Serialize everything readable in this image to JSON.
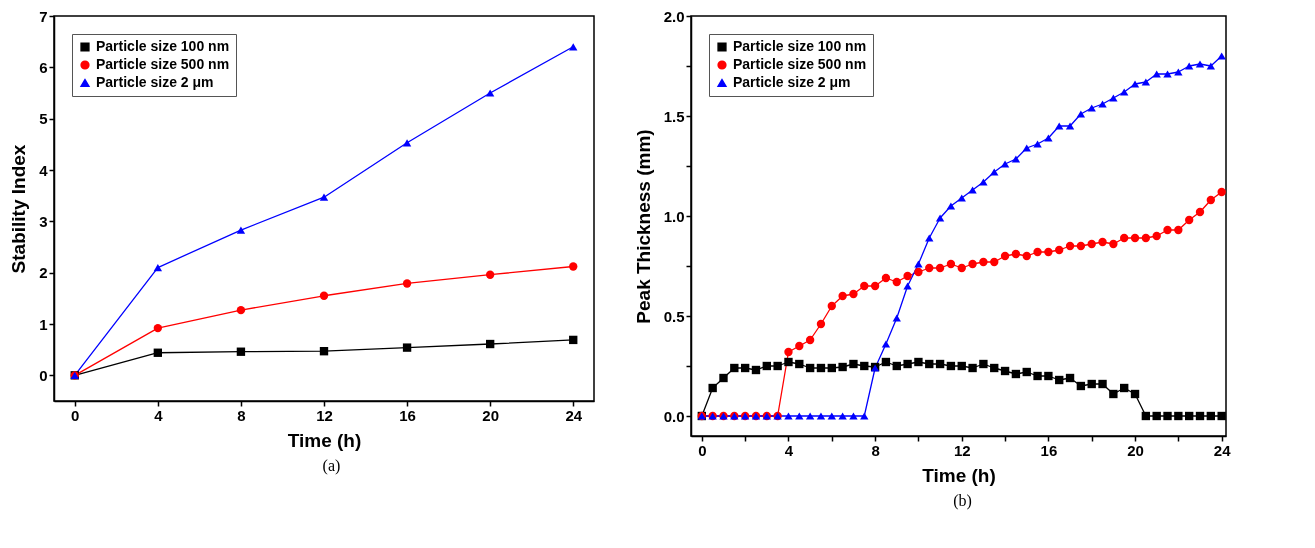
{
  "chart_data": [
    {
      "type": "line",
      "xlabel": "Time (h)",
      "ylabel": "Stability Index",
      "annotations": [
        "(a)"
      ],
      "legend": "top left",
      "grid": false,
      "x": [
        0,
        4,
        8,
        12,
        16,
        20,
        24
      ],
      "xlim": [
        -1,
        25
      ],
      "xticks": [
        0,
        4,
        8,
        12,
        16,
        20,
        24
      ],
      "ylim": [
        -0.5,
        7
      ],
      "yticks": [
        0,
        1,
        2,
        3,
        4,
        5,
        6,
        7
      ],
      "series": [
        {
          "name": "Particle size 100 nm",
          "color": "#000000",
          "marker": "square",
          "values": [
            0,
            0.44,
            0.46,
            0.47,
            0.54,
            0.61,
            0.69
          ]
        },
        {
          "name": "Particle size 500 nm",
          "color": "#ff0000",
          "marker": "circle",
          "values": [
            0,
            0.92,
            1.27,
            1.55,
            1.79,
            1.96,
            2.12
          ]
        },
        {
          "name": "Particle size 2 μm",
          "color": "#0000ff",
          "marker": "triangle",
          "values": [
            0,
            2.1,
            2.83,
            3.47,
            4.53,
            5.5,
            6.4
          ]
        }
      ]
    },
    {
      "type": "line",
      "xlabel": "Time (h)",
      "ylabel": "Peak Thickness (mm)",
      "annotations": [
        "(b)"
      ],
      "legend": "top left",
      "grid": false,
      "x": [
        0,
        0.5,
        1,
        1.5,
        2,
        2.5,
        3,
        3.5,
        4,
        4.5,
        5,
        5.5,
        6,
        6.5,
        7,
        7.5,
        8,
        8.5,
        9,
        9.5,
        10,
        10.5,
        11,
        11.5,
        12,
        12.5,
        13,
        13.5,
        14,
        14.5,
        15,
        15.5,
        16,
        16.5,
        17,
        17.5,
        18,
        18.5,
        19,
        19.5,
        20,
        20.5,
        21,
        21.5,
        22,
        22.5,
        23,
        23.5,
        24
      ],
      "xlim": [
        -0.5,
        24.2
      ],
      "xticks": [
        0,
        {
          "value": 2,
          "label": null
        },
        4,
        {
          "value": 6,
          "label": null
        },
        8,
        {
          "value": 10,
          "label": null
        },
        12,
        {
          "value": 14,
          "label": null
        },
        16,
        {
          "value": 18,
          "label": null
        },
        20,
        {
          "value": 22,
          "label": null
        },
        24
      ],
      "ylim": [
        -0.1,
        2.0
      ],
      "yticks": [
        {
          "value": 0,
          "label": "0.0"
        },
        {
          "value": 0.25,
          "label": null
        },
        0.5,
        {
          "value": 0.75,
          "label": null
        },
        {
          "value": 1,
          "label": "1.0"
        },
        {
          "value": 1.25,
          "label": null
        },
        1.5,
        {
          "value": 1.75,
          "label": null
        },
        {
          "value": 2,
          "label": "2.0"
        }
      ],
      "series": [
        {
          "name": "Particle size 100 nm",
          "color": "#000000",
          "marker": "square",
          "values": [
            0,
            0.14,
            0.19,
            0.24,
            0.24,
            0.23,
            0.25,
            0.25,
            0.27,
            0.26,
            0.24,
            0.24,
            0.24,
            0.245,
            0.26,
            0.25,
            0.245,
            0.27,
            0.25,
            0.26,
            0.27,
            0.26,
            0.26,
            0.25,
            0.25,
            0.24,
            0.26,
            0.24,
            0.225,
            0.21,
            0.22,
            0.2,
            0.2,
            0.18,
            0.19,
            0.15,
            0.16,
            0.16,
            0.11,
            0.14,
            0.11,
            0,
            0,
            0,
            0,
            0,
            0,
            0,
            0
          ]
        },
        {
          "name": "Particle size 500 nm",
          "color": "#ff0000",
          "marker": "circle",
          "values": [
            0,
            0,
            0,
            0,
            0,
            0,
            0,
            0,
            0.32,
            0.35,
            0.38,
            0.46,
            0.55,
            0.6,
            0.61,
            0.65,
            0.65,
            0.69,
            0.67,
            0.7,
            0.72,
            0.74,
            0.74,
            0.76,
            0.74,
            0.76,
            0.77,
            0.77,
            0.8,
            0.81,
            0.8,
            0.82,
            0.82,
            0.83,
            0.85,
            0.85,
            0.86,
            0.87,
            0.86,
            0.89,
            0.89,
            0.89,
            0.9,
            0.93,
            0.93,
            0.98,
            1.02,
            1.08,
            1.12
          ]
        },
        {
          "name": "Particle size 2 μm",
          "color": "#0000ff",
          "marker": "triangle",
          "values": [
            0,
            0,
            0,
            0,
            0,
            0,
            0,
            0,
            0,
            0,
            0,
            0,
            0,
            0,
            0,
            0,
            0.24,
            0.36,
            0.49,
            0.65,
            0.76,
            0.89,
            0.99,
            1.05,
            1.09,
            1.13,
            1.17,
            1.22,
            1.26,
            1.285,
            1.34,
            1.36,
            1.39,
            1.45,
            1.45,
            1.51,
            1.54,
            1.56,
            1.59,
            1.62,
            1.66,
            1.67,
            1.71,
            1.71,
            1.72,
            1.75,
            1.76,
            1.75,
            1.8
          ]
        }
      ]
    }
  ]
}
